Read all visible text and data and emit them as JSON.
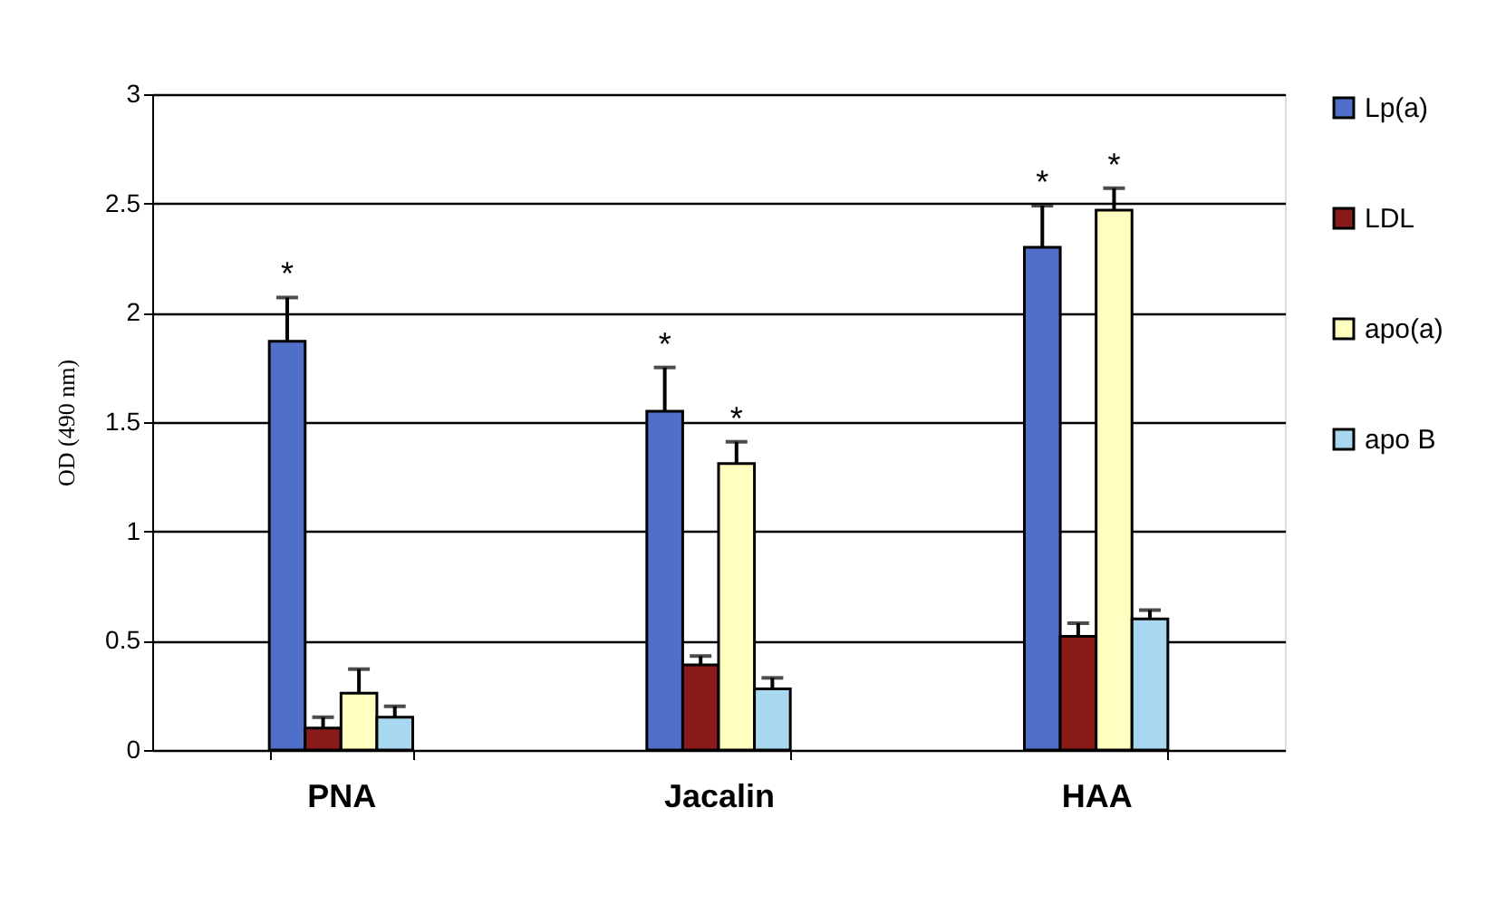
{
  "chart_data": {
    "type": "bar",
    "ylabel": "OD (490 nm)",
    "categories": [
      "PNA",
      "Jacalin",
      "HAA"
    ],
    "series": [
      {
        "name": "Lp(a)",
        "color": "#4f6fc9",
        "values": [
          1.87,
          1.55,
          2.3
        ],
        "errors": [
          0.2,
          0.2,
          0.19
        ],
        "value_labels": [
          "*",
          "*",
          "*"
        ]
      },
      {
        "name": "LDL",
        "color": "#8b1a1a",
        "values": [
          0.1,
          0.39,
          0.52
        ],
        "errors": [
          0.05,
          0.04,
          0.06
        ]
      },
      {
        "name": "apo(a)",
        "color": "#ffffc0",
        "values": [
          0.26,
          1.31,
          2.47
        ],
        "errors": [
          0.11,
          0.1,
          0.1
        ],
        "value_labels": [
          null,
          "*",
          "*"
        ]
      },
      {
        "name": "apo B",
        "color": "#a8d8f0",
        "values": [
          0.15,
          0.28,
          0.6
        ],
        "errors": [
          0.05,
          0.05,
          0.04
        ]
      }
    ],
    "ylim": [
      0,
      3
    ],
    "yticks": [
      0,
      0.5,
      1,
      1.5,
      2,
      2.5,
      3
    ],
    "grid": "y",
    "legend": "right"
  }
}
